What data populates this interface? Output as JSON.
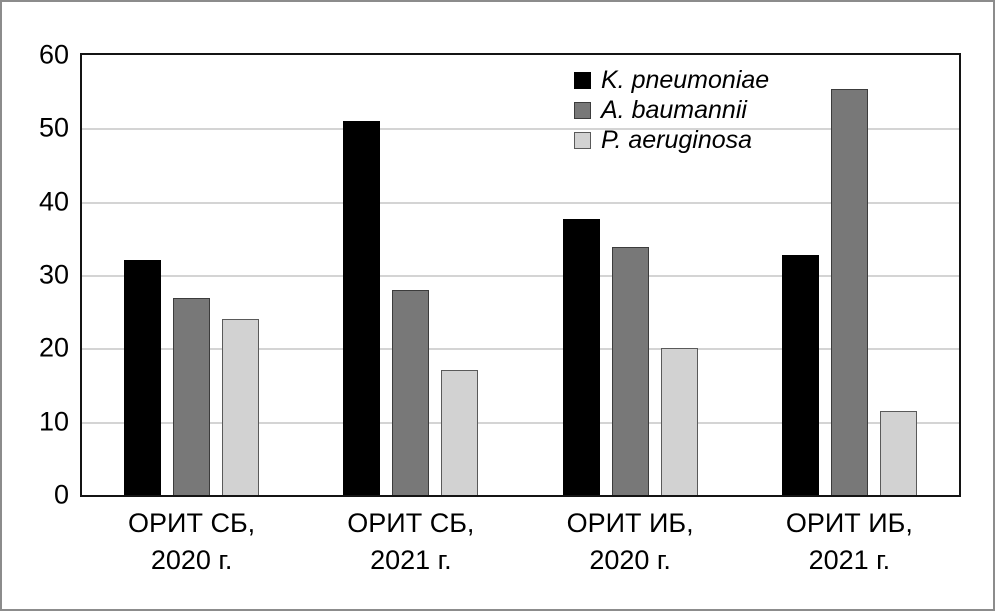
{
  "chart_data": {
    "type": "bar",
    "title": "",
    "xlabel": "",
    "ylabel": "",
    "categories": [
      [
        "ОРИТ СБ,",
        "2020 г."
      ],
      [
        "ОРИТ СБ,",
        "2021 г."
      ],
      [
        "ОРИТ ИБ,",
        "2020 г."
      ],
      [
        "ОРИТ ИБ,",
        "2021 г."
      ]
    ],
    "series": [
      {
        "name": "K. pneumoniae",
        "color": "#000000",
        "border_color": "#000000",
        "values": [
          32,
          51,
          37.6,
          32.7
        ]
      },
      {
        "name": "A. baumannii",
        "color": "#787878",
        "border_color": "#3c3c3c",
        "values": [
          26.8,
          28,
          33.8,
          55.4
        ]
      },
      {
        "name": "P. aeruginosa",
        "color": "#d2d2d2",
        "border_color": "#5a5a5a",
        "values": [
          24,
          17,
          20,
          11.4
        ]
      }
    ],
    "ylim": [
      0,
      60
    ],
    "yticks": [
      0,
      10,
      20,
      30,
      40,
      50,
      60
    ],
    "grid": true,
    "gridline_color": "#d4d4d4",
    "legend_position": "top-right-inside",
    "legend_transparent": true
  },
  "frame": {
    "border_color": "#8c8c8c",
    "plot_border_color": "#141414"
  }
}
